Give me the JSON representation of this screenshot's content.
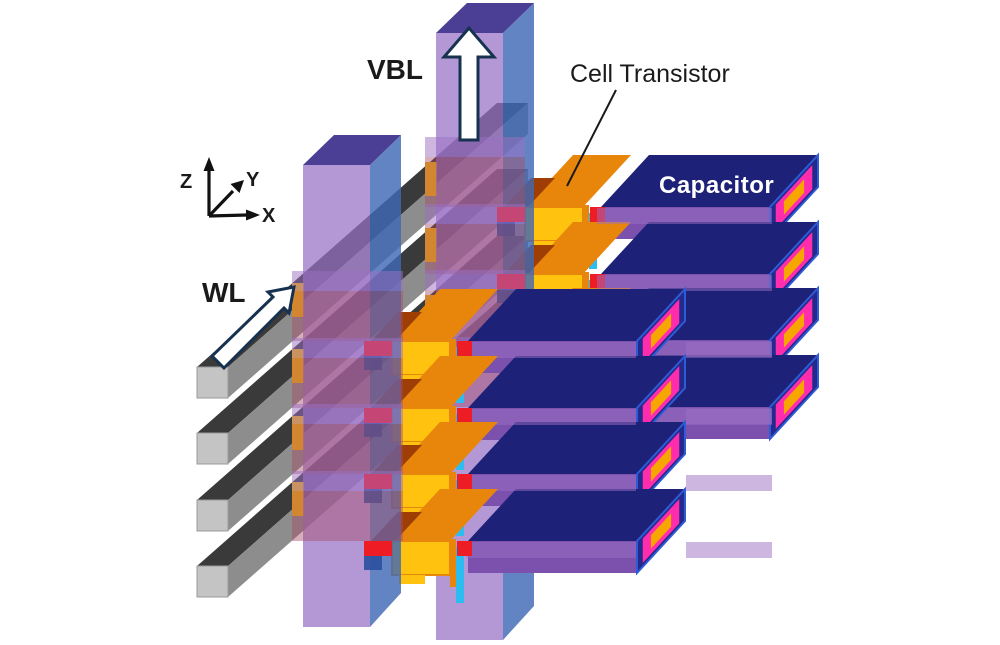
{
  "labels": {
    "wl": "WL",
    "vbl": "VBL",
    "cell_transistor": "Cell Transistor",
    "capacitor": "Capacitor"
  },
  "axes": {
    "x": "X",
    "y": "Y",
    "z": "Z"
  },
  "components": {
    "word_lines": 4,
    "vertical_bit_line_pillars": 2,
    "cell_transistors": 8,
    "capacitors": 8
  },
  "colors": {
    "background": "#ffffff",
    "wl_front": "#c4c4c4",
    "wl_top": "#3a3a3a",
    "wl_side": "#8d8d8d",
    "vbl_front": "#9770c5",
    "vbl_side": "#4169b5",
    "vbl_top": "#4a3f95",
    "gate": "#f7b500",
    "transistor_top": "#e8860b",
    "transistor_front": "#ffc20e",
    "transistor_shadow": "#9e3d04",
    "oxide_edge": "#2bbdf2",
    "contact_red": "#ee1c25",
    "contact_blue": "#2b4fa0",
    "capacitor_top": "#1e2178",
    "capacitor_front": "#7b51ad",
    "ring_outer": "#232a8c",
    "ring_edge": "#2e5bd6",
    "ring_magenta": "#ff2dae",
    "ring_core": "#f7a600",
    "band_purple": "#9b6fc4",
    "band_mauve": "#a34e68",
    "arrow_fill": "#ffffff",
    "arrow_outline": "#16324f",
    "text": "#1a1a1a"
  }
}
